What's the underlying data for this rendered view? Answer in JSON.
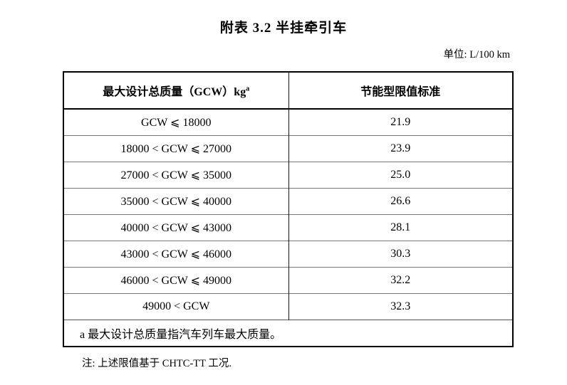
{
  "page": {
    "title": "附表 3.2  半挂牵引车",
    "unit_label": "单位:  L/100 km",
    "note": "注:  上述限值基于 CHTC-TT 工况."
  },
  "table": {
    "columns": {
      "col1": "最大设计总质量（GCW）kg",
      "col1_sup": "a",
      "col2": "节能型限值标准"
    },
    "rows": [
      {
        "gcw": "GCW ⩽ 18000",
        "limit": "21.9"
      },
      {
        "gcw": "18000 < GCW ⩽ 27000",
        "limit": "23.9"
      },
      {
        "gcw": "27000 < GCW ⩽ 35000",
        "limit": "25.0"
      },
      {
        "gcw": "35000 < GCW ⩽ 40000",
        "limit": "26.6"
      },
      {
        "gcw": "40000 < GCW ⩽ 43000",
        "limit": "28.1"
      },
      {
        "gcw": "43000 < GCW ⩽ 46000",
        "limit": "30.3"
      },
      {
        "gcw": "46000 < GCW ⩽ 49000",
        "limit": "32.2"
      },
      {
        "gcw": "49000 < GCW",
        "limit": "32.3"
      }
    ],
    "footnote": "a 最大设计总质量指汽车列车最大质量。"
  }
}
